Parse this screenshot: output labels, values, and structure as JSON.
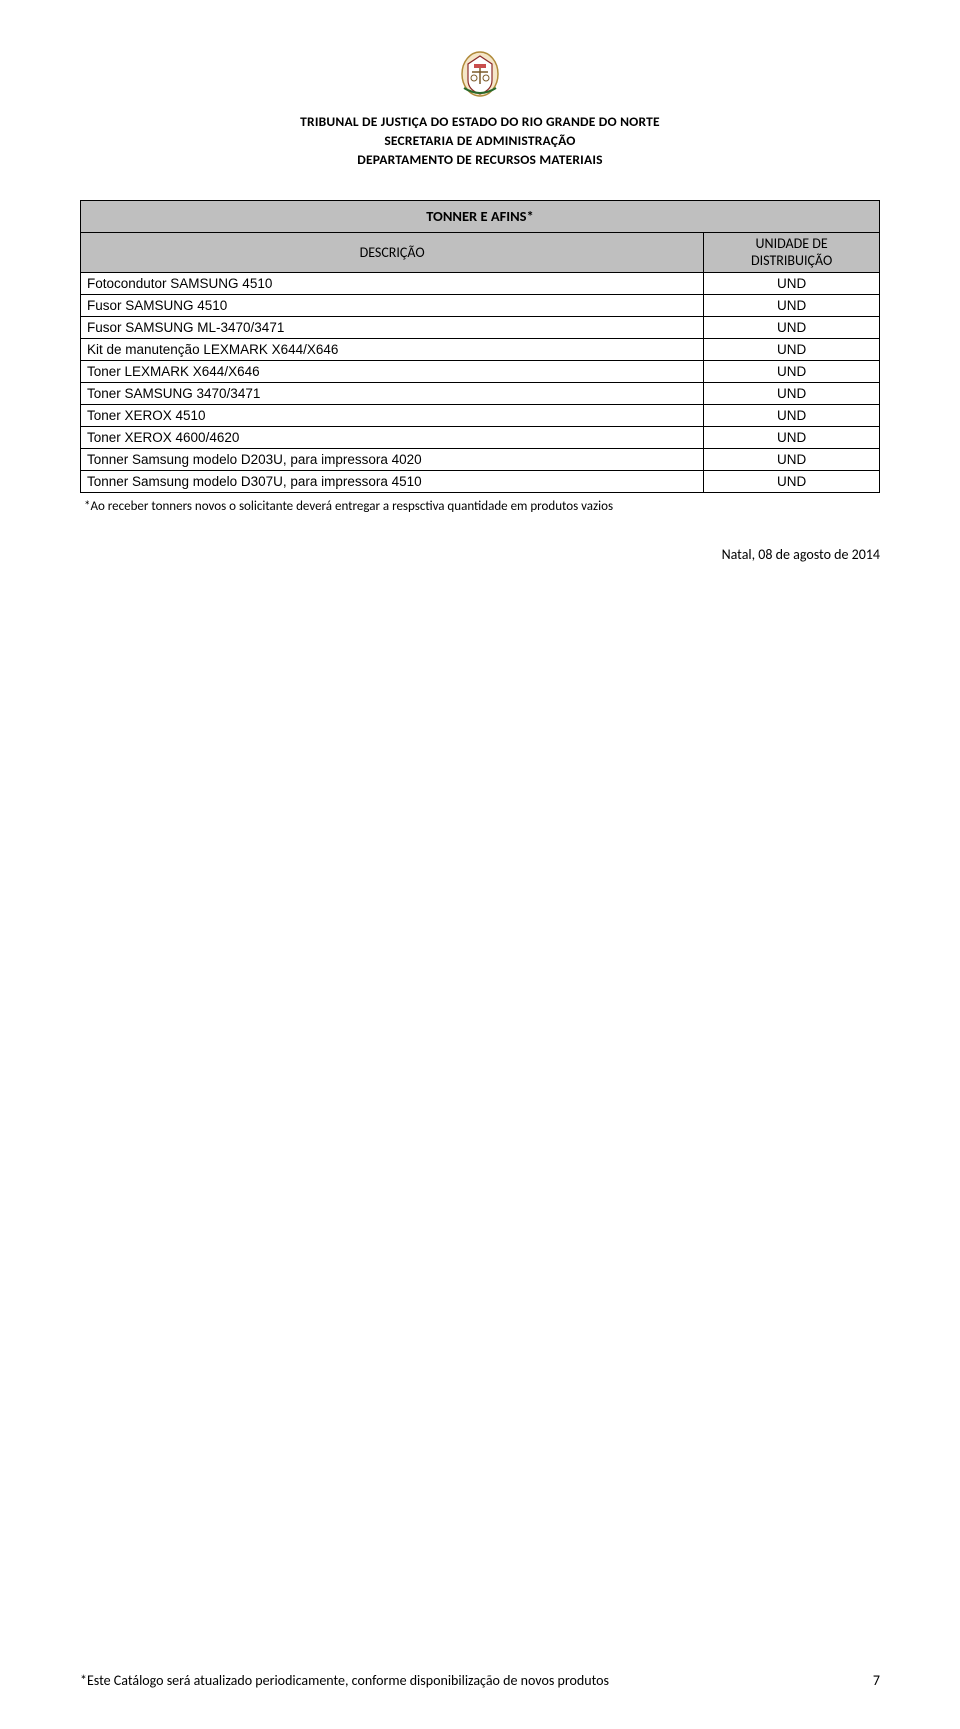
{
  "header": {
    "org_line_1": "TRIBUNAL DE JUSTIÇA DO ESTADO DO RIO GRANDE DO NORTE",
    "org_line_2": "SECRETARIA DE ADMINISTRAÇÃO",
    "org_line_3": "DEPARTAMENTO DE RECURSOS MATERIAIS"
  },
  "table": {
    "title": "TONNER E AFINS*",
    "col1_header": "DESCRIÇÃO",
    "col2_header_line1": "UNIDADE DE",
    "col2_header_line2": "DISTRIBUIÇÃO",
    "rows": [
      {
        "desc": "Fotocondutor SAMSUNG 4510",
        "unit": "UND"
      },
      {
        "desc": "Fusor SAMSUNG 4510",
        "unit": "UND"
      },
      {
        "desc": "Fusor SAMSUNG ML-3470/3471",
        "unit": "UND"
      },
      {
        "desc": "Kit de manutenção LEXMARK X644/X646",
        "unit": "UND"
      },
      {
        "desc": "Toner LEXMARK X644/X646",
        "unit": "UND"
      },
      {
        "desc": "Toner SAMSUNG 3470/3471",
        "unit": "UND"
      },
      {
        "desc": "Toner XEROX 4510",
        "unit": "UND"
      },
      {
        "desc": "Toner XEROX 4600/4620",
        "unit": "UND"
      },
      {
        "desc": "Tonner Samsung modelo D203U, para impressora 4020",
        "unit": "UND"
      },
      {
        "desc": "Tonner Samsung modelo D307U, para impressora 4510",
        "unit": "UND"
      }
    ],
    "note": "*Ao receber tonners novos o solicitante deverá entregar a respsctiva quantidade em produtos vazios"
  },
  "date_line": "Natal, 08 de agosto de 2014",
  "footer": {
    "text": "*Este Catálogo será atualizado periodicamente, conforme disponibilização de novos produtos",
    "page_num": "7"
  },
  "style": {
    "header_bg": "#bfbfbf",
    "border_color": "#000000",
    "text_color": "#000000",
    "background": "#ffffff"
  }
}
